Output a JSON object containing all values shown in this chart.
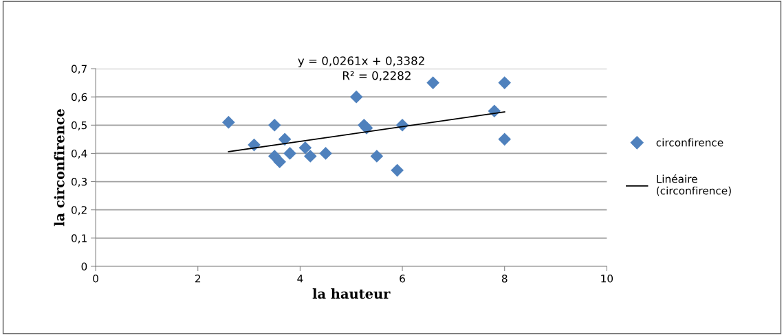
{
  "chart_data": {
    "type": "scatter",
    "xlabel": "la hauteur",
    "ylabel": "la circonfirence",
    "xlim": [
      0,
      10
    ],
    "xticks": [
      0,
      2,
      4,
      6,
      8,
      10
    ],
    "ylim": [
      0,
      0.7
    ],
    "yticks": [
      {
        "value": 0,
        "label": "0"
      },
      {
        "value": 0.1,
        "label": "0,1"
      },
      {
        "value": 0.2,
        "label": "0,2"
      },
      {
        "value": 0.3,
        "label": "0,3"
      },
      {
        "value": 0.4,
        "label": "0,4"
      },
      {
        "value": 0.5,
        "label": "0,5"
      },
      {
        "value": 0.6,
        "label": "0,6"
      },
      {
        "value": 0.7,
        "label": "0,7"
      }
    ],
    "grid": "y",
    "legend": "right",
    "annotations": [
      "y = 0,0261x + 0,3382",
      "R² = 0,2282"
    ],
    "series": [
      {
        "name": "circonfirence",
        "marker": "diamond",
        "color": "#4f81bd",
        "x": [
          2.6,
          3.1,
          3.5,
          3.5,
          3.6,
          3.7,
          3.8,
          4.1,
          4.2,
          4.5,
          5.1,
          5.25,
          5.3,
          5.5,
          5.9,
          6.0,
          6.6,
          7.8,
          8.0,
          8.0
        ],
        "values": [
          0.51,
          0.43,
          0.5,
          0.39,
          0.37,
          0.45,
          0.4,
          0.42,
          0.39,
          0.4,
          0.6,
          0.5,
          0.49,
          0.39,
          0.34,
          0.5,
          0.65,
          0.55,
          0.65,
          0.45
        ]
      },
      {
        "name": "Linéaire (circonfirence)",
        "type": "line",
        "marker": "none",
        "color": "#000000",
        "x": [
          2.6,
          8.0
        ],
        "values": [
          0.406,
          0.547
        ]
      }
    ]
  }
}
